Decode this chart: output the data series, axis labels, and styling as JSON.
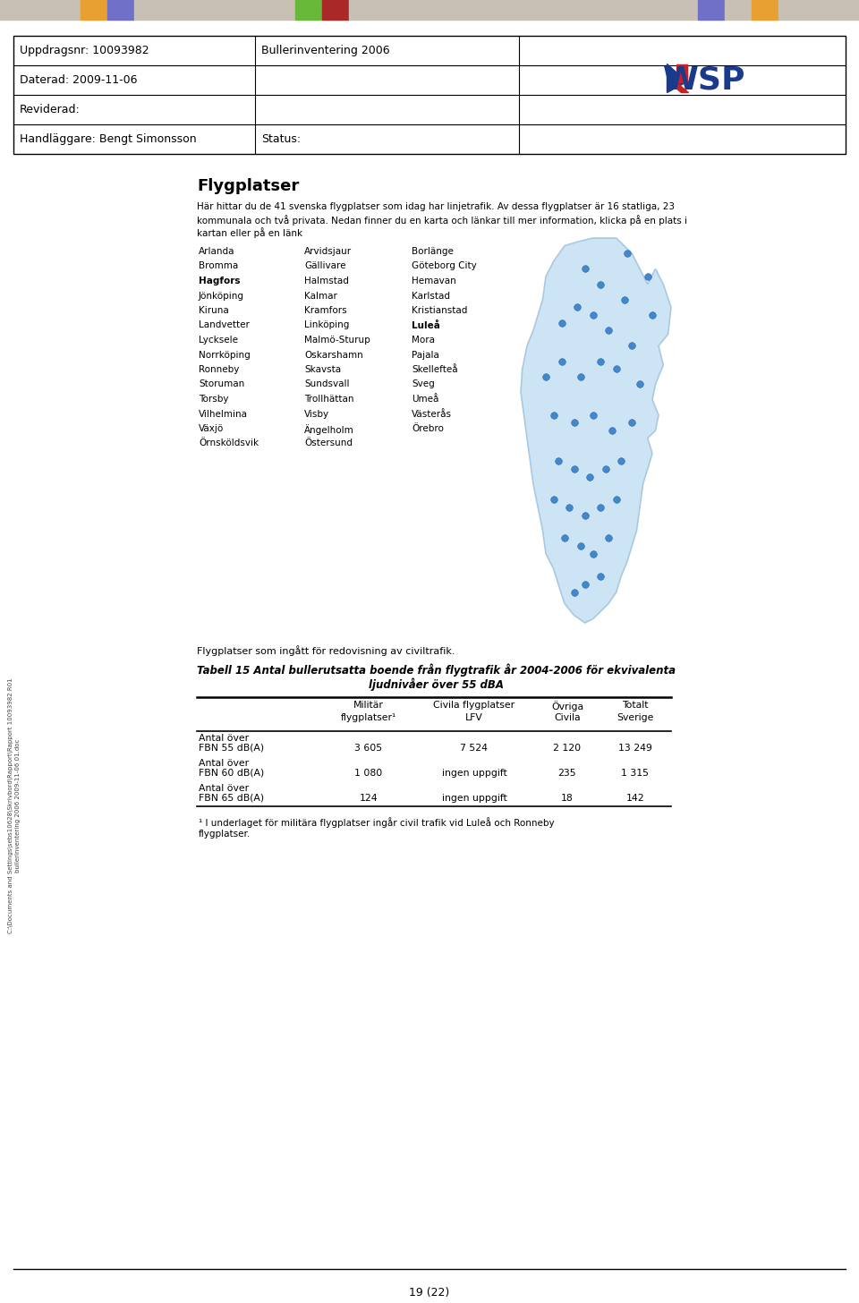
{
  "page_bg": "#ffffff",
  "top_bar_colors": [
    "#c8bfb5",
    "#c8bfb5",
    "#c8bfb5",
    "#e8a030",
    "#7070c8",
    "#c8bfb5",
    "#c8bfb5",
    "#c8bfb5",
    "#c8bfb5",
    "#c8bfb5",
    "#c8bfb5",
    "#68b83a",
    "#aa2828",
    "#c8bfb5",
    "#c8bfb5",
    "#c8bfb5",
    "#c8bfb5",
    "#c8bfb5",
    "#c8bfb5",
    "#c8bfb5",
    "#c8bfb5",
    "#c8bfb5",
    "#c8bfb5",
    "#c8bfb5",
    "#c8bfb5",
    "#c8bfb5",
    "#7070c8",
    "#c8bfb5",
    "#e8a030",
    "#c8bfb5",
    "#c8bfb5",
    "#c8bfb5"
  ],
  "section_title": "Flygplatser",
  "section_intro": "Här hittar du de 41 svenska flygplatser som idag har linjetrafik. Av dessa flygplatser är 16 statliga, 23\nkommunala och två privata. Nedan finner du en karta och länkar till mer information, klicka på en plats i\nkartan eller på en länk",
  "airport_list_col1": [
    "Arlanda",
    "Bromma",
    "Hagfors",
    "Jönköping",
    "Kiruna",
    "Landvetter",
    "Lycksele",
    "Norrköping",
    "Ronneby",
    "Storuman",
    "Torsby",
    "Vilhelmina",
    "Växjö",
    "Örnsköldsvik"
  ],
  "airport_list_col2": [
    "Arvidsjaur",
    "Gällivare",
    "Halmstad",
    "Kalmar",
    "Kramfors",
    "Linköping",
    "Malmö-Sturup",
    "Oskarshamn",
    "Skavsta",
    "Sundsvall",
    "Trollhättan",
    "Visby",
    "Ängelholm",
    "Östersund"
  ],
  "airport_list_col3": [
    "Borlänge",
    "Göteborg City",
    "Hemavan",
    "Karlstad",
    "Kristianstad",
    "Luleå",
    "Mora",
    "Pajala",
    "Skellefteå",
    "Sveg",
    "Umeå",
    "Västerås",
    "Örebro",
    ""
  ],
  "bold_airports": [
    "Hagfors",
    "Luleå"
  ],
  "caption_text": "Flygplatser som ingått för redovisning av civiltrafik.",
  "table_title_line1": "Tabell 15 Antal bullerutsatta boende från flygtrafik år 2004-2006 för ekvivalenta",
  "table_title_line2": "ljudnivåer över 55 dBA",
  "rows": [
    {
      "label1": "Antal över",
      "label2": "FBN 55 dB(A)",
      "mil": "3 605",
      "civ": "7 524",
      "ovr": "2 120",
      "tot": "13 249"
    },
    {
      "label1": "Antal över",
      "label2": "FBN 60 dB(A)",
      "mil": "1 080",
      "civ": "ingen uppgift",
      "ovr": "235",
      "tot": "1 315"
    },
    {
      "label1": "Antal över",
      "label2": "FBN 65 dB(A)",
      "mil": "124",
      "civ": "ingen uppgift",
      "ovr": "18",
      "tot": "142"
    }
  ],
  "footnote_line1": "¹ I underlaget för militära flygplatser ingår civil trafik vid Luleå och Ronneby",
  "footnote_line2": "flygplatser.",
  "page_number": "19 (22)",
  "sidebar_line1": "C:\\Documents and Settings\\sebs10628\\Skrivbord\\Rapport\\Rapport 10093982 R01",
  "sidebar_line2": "bullerinventering 2006 2009-11-06 01.doc"
}
